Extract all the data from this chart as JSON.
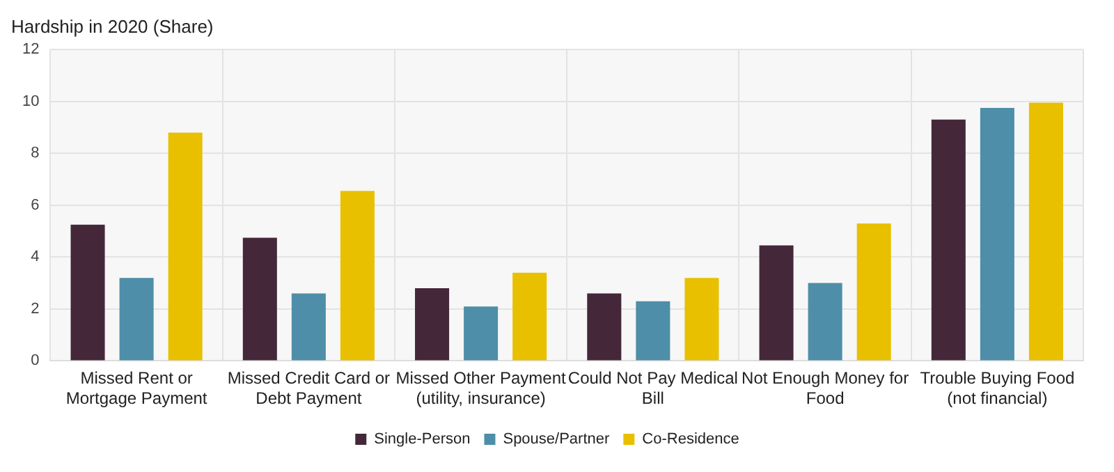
{
  "chart_data": {
    "type": "bar",
    "title": "Hardship in 2020 (Share)",
    "categories": [
      "Missed Rent or Mortgage Payment",
      "Missed Credit Card or Debt Payment",
      "Missed Other Payment (utility, insurance)",
      "Could Not Pay Medical Bill",
      "Not Enough Money for Food",
      "Trouble Buying Food (not financial)"
    ],
    "series": [
      {
        "name": "Single-Person",
        "color": "#45273a",
        "values": [
          5.25,
          4.75,
          2.8,
          2.6,
          4.45,
          9.3
        ]
      },
      {
        "name": "Spouse/Partner",
        "color": "#4e8ea8",
        "values": [
          3.2,
          2.6,
          2.1,
          2.3,
          3.0,
          9.75
        ]
      },
      {
        "name": "Co-Residence",
        "color": "#e8c000",
        "values": [
          8.8,
          6.55,
          3.4,
          3.2,
          5.3,
          9.95
        ]
      }
    ],
    "ylim": [
      0,
      12
    ],
    "yticks": [
      0,
      2,
      4,
      6,
      8,
      10,
      12
    ],
    "grid": true,
    "legend": "bottom"
  }
}
